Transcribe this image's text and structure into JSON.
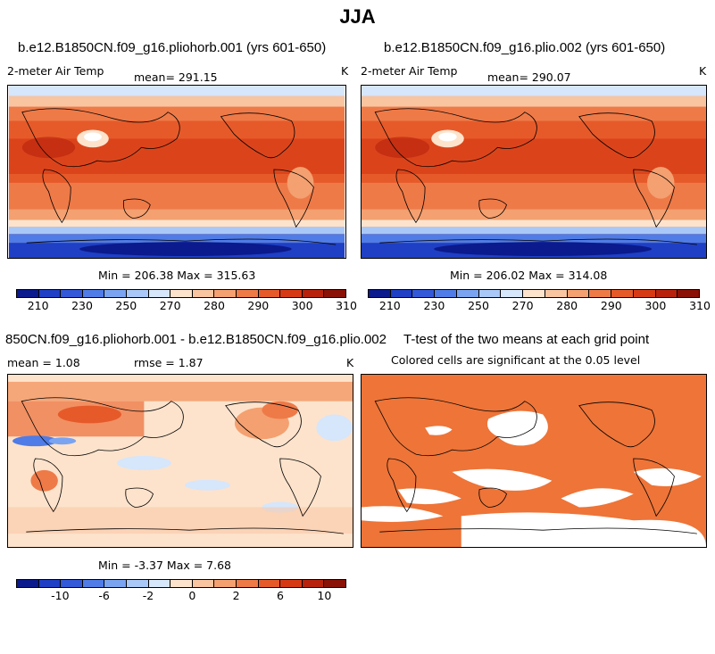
{
  "figure": {
    "title": "JJA"
  },
  "panels": [
    {
      "title": "b.e12.B1850CN.f09_g16.pliohorb.001 (yrs 601-650)",
      "variable": "2-meter Air Temp",
      "mean": "mean= 291.15",
      "units": "K",
      "minmax": "Min = 206.38 Max = 315.63",
      "colorbar_ticks": [
        "210",
        "230",
        "250",
        "270",
        "280",
        "290",
        "300",
        "310"
      ]
    },
    {
      "title": "b.e12.B1850CN.f09_g16.plio.002 (yrs 601-650)",
      "variable": "2-meter Air Temp",
      "mean": "mean= 290.07",
      "units": "K",
      "minmax": "Min = 206.02 Max = 314.08",
      "colorbar_ticks": [
        "210",
        "230",
        "250",
        "270",
        "280",
        "290",
        "300",
        "310"
      ]
    },
    {
      "title": "850CN.f09_g16.pliohorb.001 - b.e12.B1850CN.f09_g16.plio.002",
      "mean": "mean =    1.08",
      "rmse": "rmse =    1.87",
      "units": "K",
      "minmax": "Min =  -3.37 Max =   7.68",
      "colorbar_ticks": [
        "-10",
        "-6",
        "-2",
        "0",
        "2",
        "6",
        "10"
      ]
    },
    {
      "title": "T-test of the two means at each grid point",
      "subtitle": "Colored cells are significant at the 0.05 level"
    }
  ],
  "colors": {
    "temp_scale": [
      "#0b1a8c",
      "#1f3fc4",
      "#3358d8",
      "#4f7ce6",
      "#7aa4f0",
      "#a9c8f7",
      "#d6e6fb",
      "#fde3cc",
      "#f9c4a0",
      "#f4a070",
      "#ee7a48",
      "#e65a2a",
      "#d63a15",
      "#b8220c",
      "#8a1105"
    ],
    "diff_scale": [
      "#0b1a8c",
      "#1f3fc4",
      "#3358d8",
      "#4f7ce6",
      "#7aa4f0",
      "#a9c8f7",
      "#d6e6fb",
      "#fde3cc",
      "#f9c4a0",
      "#f4a070",
      "#ee7a48",
      "#e65a2a",
      "#d63a15",
      "#b8220c",
      "#8a1105"
    ],
    "significant": "#ee7438"
  }
}
